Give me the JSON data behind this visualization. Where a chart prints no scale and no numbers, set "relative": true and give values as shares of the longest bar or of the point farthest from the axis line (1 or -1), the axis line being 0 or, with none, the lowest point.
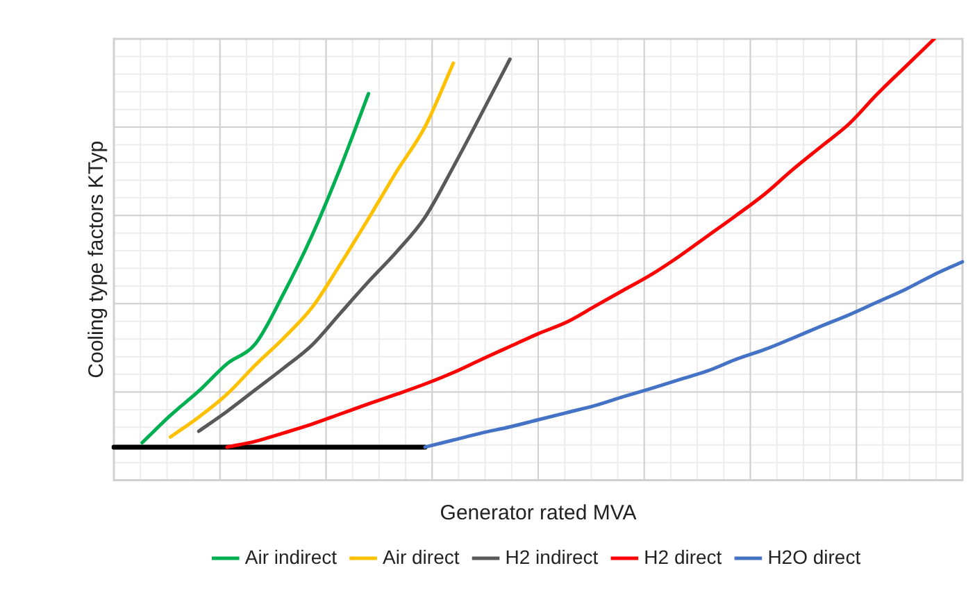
{
  "chart_data": {
    "type": "line",
    "relative": true,
    "xlabel": "Generator rated MVA",
    "ylabel": "Cooling type factors KTyp",
    "grid": true,
    "legend": "bottom",
    "marker": "none",
    "line_style": "solid",
    "categories": [
      null,
      null,
      null,
      null,
      null,
      null,
      null,
      null,
      null,
      null,
      null,
      null,
      null,
      null,
      null,
      null,
      null,
      null,
      null,
      null,
      null,
      null,
      null,
      null,
      null,
      null,
      null,
      null,
      null,
      null,
      null
    ],
    "series": [
      {
        "name": "Air indirect",
        "color": "#00b050",
        "values": [
          null,
          0.085,
          0.147,
          0.202,
          0.264,
          0.309,
          0.423,
          0.554,
          0.707,
          0.876,
          null,
          null,
          null,
          null,
          null,
          null,
          null,
          null,
          null,
          null,
          null,
          null,
          null,
          null,
          null,
          null,
          null,
          null,
          null,
          null,
          null
        ]
      },
      {
        "name": "Air direct",
        "color": "#ffc000",
        "values": [
          null,
          null,
          0.098,
          0.143,
          0.195,
          0.261,
          0.322,
          0.391,
          0.489,
          0.593,
          0.7,
          0.801,
          0.945,
          null,
          null,
          null,
          null,
          null,
          null,
          null,
          null,
          null,
          null,
          null,
          null,
          null,
          null,
          null,
          null,
          null,
          null
        ]
      },
      {
        "name": "H2 indirect",
        "color": "#595959",
        "values": [
          null,
          null,
          null,
          0.111,
          0.156,
          0.205,
          0.254,
          0.306,
          0.378,
          0.45,
          0.518,
          0.596,
          0.71,
          0.831,
          0.954,
          null,
          null,
          null,
          null,
          null,
          null,
          null,
          null,
          null,
          null,
          null,
          null,
          null,
          null,
          null,
          null
        ]
      },
      {
        "name": "H2 direct",
        "color": "#ff0000",
        "values": [
          null,
          null,
          null,
          null,
          0.075,
          0.088,
          0.107,
          0.127,
          0.15,
          0.173,
          0.195,
          0.218,
          0.244,
          0.274,
          0.303,
          0.332,
          0.358,
          0.394,
          0.43,
          0.466,
          0.508,
          0.554,
          0.6,
          0.648,
          0.704,
          0.756,
          0.808,
          0.876,
          0.938,
          1,
          null
        ]
      },
      {
        "name": "H2O direct",
        "color": "#4472c4",
        "values": [
          null,
          null,
          null,
          null,
          null,
          null,
          null,
          null,
          null,
          null,
          null,
          0.075,
          0.091,
          0.107,
          0.121,
          0.137,
          0.153,
          0.169,
          0.189,
          0.208,
          0.228,
          0.248,
          0.274,
          0.296,
          0.322,
          0.349,
          0.375,
          0.404,
          0.433,
          0.466,
          0.495
        ]
      },
      {
        "color": "#000000",
        "values": [
          0.075,
          0.075,
          0.075,
          0.075,
          0.075,
          0.075,
          0.075,
          0.075,
          0.075,
          0.075,
          0.075,
          0.075,
          null,
          null,
          null,
          null,
          null,
          null,
          null,
          null,
          null,
          null,
          null,
          null,
          null,
          null,
          null,
          null,
          null,
          null,
          null
        ]
      }
    ]
  }
}
